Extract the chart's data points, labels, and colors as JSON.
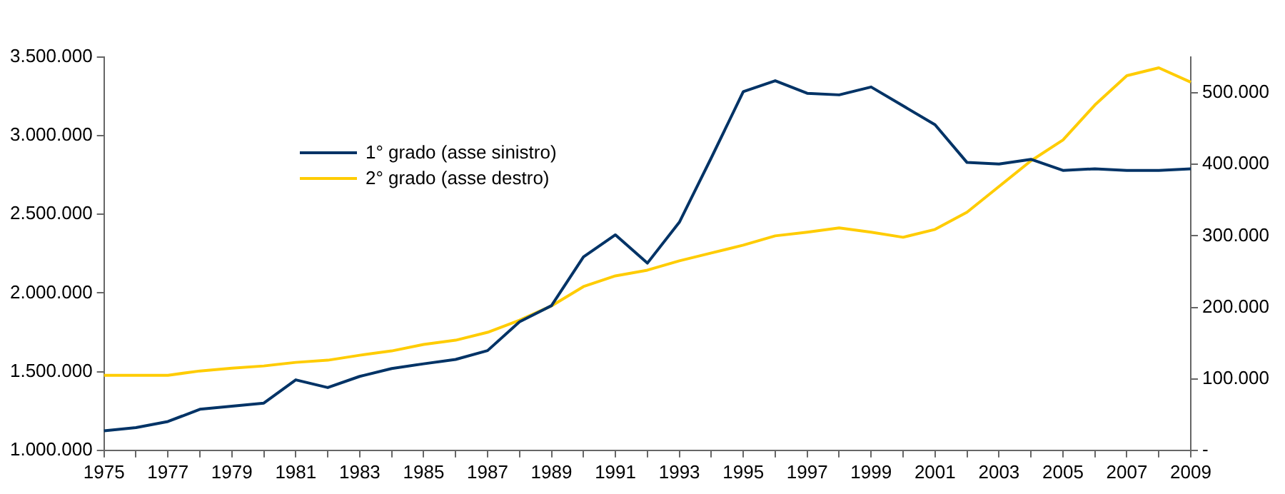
{
  "chart_data": {
    "type": "line",
    "categories": [
      "1975",
      null,
      "1977",
      null,
      "1979",
      null,
      "1981",
      null,
      "1983",
      null,
      "1985",
      null,
      "1987",
      null,
      "1989",
      null,
      "1991",
      null,
      "1993",
      null,
      "1995",
      null,
      "1997",
      null,
      "1999",
      null,
      "2001",
      null,
      "2003",
      null,
      "2005",
      null,
      "2007",
      null,
      "2009"
    ],
    "series": [
      {
        "name": "1° grado (asse sinistro)",
        "color": "#003366",
        "values": [
          1124000,
          1144000,
          1183000,
          1261000,
          1281000,
          1300000,
          1448000,
          1399000,
          1470000,
          1520000,
          1550000,
          1578000,
          1634000,
          1817000,
          1920000,
          2230000,
          2370000,
          2190000,
          2450000,
          2860000,
          3280000,
          3350000,
          3270000,
          3260000,
          3310000,
          3190000,
          3070000,
          2830000,
          2820000,
          2850000,
          2780000,
          2790000,
          2780000,
          2780000,
          2790000
        ]
      },
      {
        "name": "2° grado (asse destro)",
        "color": "#ffcc00",
        "axis": "y2",
        "values": [
          105000,
          105000,
          105000,
          111000,
          115000,
          118000,
          123000,
          126000,
          133000,
          139000,
          148000,
          154000,
          165000,
          182000,
          202000,
          229000,
          244000,
          252000,
          265000,
          276000,
          287000,
          300000,
          305000,
          311000,
          305000,
          298000,
          309000,
          333000,
          369000,
          405000,
          434000,
          483000,
          524000,
          535000,
          515000
        ]
      }
    ],
    "ylim": [
      1000000,
      3500000
    ],
    "yticks": [
      {
        "value": 1000000,
        "label": "1.000.000"
      },
      {
        "value": 1500000,
        "label": "1.500.000"
      },
      {
        "value": 2000000,
        "label": "2.000.000"
      },
      {
        "value": 2500000,
        "label": "2.500.000"
      },
      {
        "value": 3000000,
        "label": "3.000.000"
      },
      {
        "value": 3500000,
        "label": "3.500.000"
      }
    ],
    "y2lim": [
      0,
      550000
    ],
    "y2ticks": [
      {
        "value": 0,
        "label": "-"
      },
      {
        "value": 100000,
        "label": "100.000"
      },
      {
        "value": 200000,
        "label": "200.000"
      },
      {
        "value": 300000,
        "label": "300.000"
      },
      {
        "value": 400000,
        "label": "400.000"
      },
      {
        "value": 500000,
        "label": "500.000"
      }
    ],
    "legend": "top left",
    "marker": "none",
    "line_style": "solid"
  }
}
